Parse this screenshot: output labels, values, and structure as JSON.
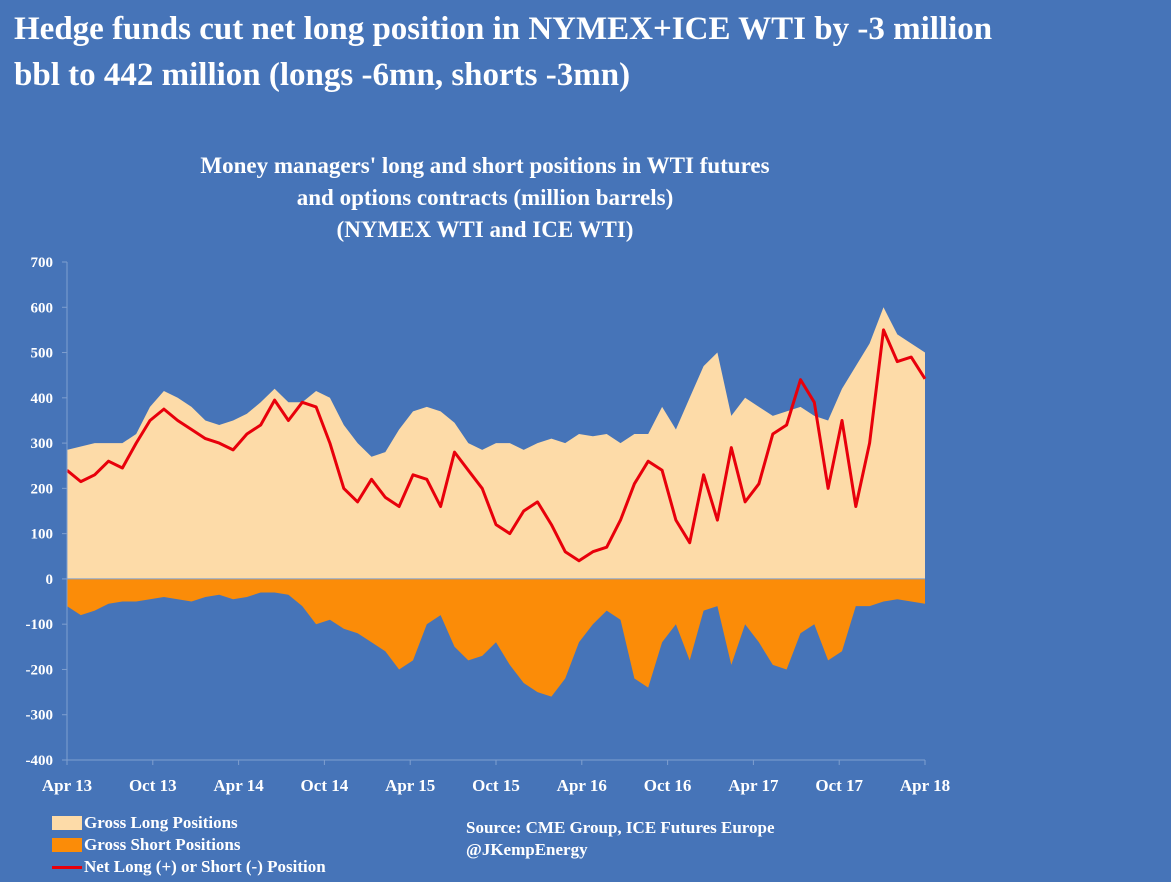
{
  "headline": {
    "line1": "Hedge funds cut net long position in NYMEX+ICE WTI by -3 million",
    "line2": "bbl to 442 million (longs -6mn, shorts -3mn)"
  },
  "colors": {
    "background": "#4674b8",
    "long_fill": "#fddba8",
    "short_fill": "#fb8c08",
    "net_line": "#e8000b",
    "text": "#ffffff"
  },
  "legend": [
    {
      "label": "Gross Long Positions",
      "color": "#fddba8",
      "kind": "fill"
    },
    {
      "label": "Gross Short Positions",
      "color": "#fb8c08",
      "kind": "fill"
    },
    {
      "label": "Net Long (+) or Short (-) Position",
      "color": "#e8000b",
      "kind": "line"
    }
  ],
  "source": {
    "line1": "Source:  CME Group, ICE Futures Europe",
    "line2": "@JKempEnergy"
  },
  "chart_data": {
    "type": "area",
    "title_lines": [
      "Money managers' long and short positions in WTI futures",
      "and options contracts (million barrels)",
      "(NYMEX WTI and ICE WTI)"
    ],
    "xlabel": "",
    "ylabel": "",
    "ylim": [
      -400,
      700
    ],
    "yticks": [
      700,
      600,
      500,
      400,
      300,
      200,
      100,
      0,
      -100,
      -200,
      -300,
      -400
    ],
    "x_tick_labels": [
      "Apr 13",
      "Oct 13",
      "Apr 14",
      "Oct 14",
      "Apr 15",
      "Oct 15",
      "Apr 16",
      "Oct 16",
      "Apr 17",
      "Oct 17",
      "Apr 18"
    ],
    "grid": false,
    "legend_position": "bottom-left",
    "series": [
      {
        "name": "Gross Long Positions",
        "style": "area",
        "points": [
          [
            0,
            285
          ],
          [
            2,
            300
          ],
          [
            4,
            300
          ],
          [
            5,
            320
          ],
          [
            6,
            380
          ],
          [
            7,
            415
          ],
          [
            8,
            400
          ],
          [
            9,
            380
          ],
          [
            10,
            350
          ],
          [
            11,
            340
          ],
          [
            12,
            350
          ],
          [
            13,
            365
          ],
          [
            14,
            390
          ],
          [
            15,
            420
          ],
          [
            16,
            390
          ],
          [
            17,
            390
          ],
          [
            18,
            415
          ],
          [
            19,
            400
          ],
          [
            20,
            340
          ],
          [
            21,
            300
          ],
          [
            22,
            270
          ],
          [
            23,
            280
          ],
          [
            24,
            330
          ],
          [
            25,
            370
          ],
          [
            26,
            380
          ],
          [
            27,
            370
          ],
          [
            28,
            345
          ],
          [
            29,
            300
          ],
          [
            30,
            285
          ],
          [
            31,
            300
          ],
          [
            32,
            300
          ],
          [
            33,
            285
          ],
          [
            34,
            300
          ],
          [
            35,
            310
          ],
          [
            36,
            300
          ],
          [
            37,
            320
          ],
          [
            38,
            315
          ],
          [
            39,
            320
          ],
          [
            40,
            300
          ],
          [
            41,
            320
          ],
          [
            42,
            320
          ],
          [
            43,
            380
          ],
          [
            44,
            330
          ],
          [
            45,
            400
          ],
          [
            46,
            470
          ],
          [
            47,
            500
          ],
          [
            48,
            360
          ],
          [
            49,
            400
          ],
          [
            50,
            380
          ],
          [
            51,
            360
          ],
          [
            52,
            370
          ],
          [
            53,
            380
          ],
          [
            54,
            360
          ],
          [
            55,
            350
          ],
          [
            56,
            420
          ],
          [
            57,
            470
          ],
          [
            58,
            520
          ],
          [
            59,
            600
          ],
          [
            60,
            540
          ],
          [
            61,
            520
          ],
          [
            62,
            500
          ]
        ]
      },
      {
        "name": "Gross Short Positions",
        "style": "area",
        "points": [
          [
            0,
            -60
          ],
          [
            1,
            -80
          ],
          [
            2,
            -70
          ],
          [
            3,
            -55
          ],
          [
            4,
            -50
          ],
          [
            5,
            -50
          ],
          [
            6,
            -45
          ],
          [
            7,
            -40
          ],
          [
            8,
            -45
          ],
          [
            9,
            -50
          ],
          [
            10,
            -40
          ],
          [
            11,
            -35
          ],
          [
            12,
            -45
          ],
          [
            13,
            -40
          ],
          [
            14,
            -30
          ],
          [
            15,
            -30
          ],
          [
            16,
            -35
          ],
          [
            17,
            -60
          ],
          [
            18,
            -100
          ],
          [
            19,
            -90
          ],
          [
            20,
            -110
          ],
          [
            21,
            -120
          ],
          [
            22,
            -140
          ],
          [
            23,
            -160
          ],
          [
            24,
            -200
          ],
          [
            25,
            -180
          ],
          [
            26,
            -100
          ],
          [
            27,
            -80
          ],
          [
            28,
            -150
          ],
          [
            29,
            -180
          ],
          [
            30,
            -170
          ],
          [
            31,
            -140
          ],
          [
            32,
            -190
          ],
          [
            33,
            -230
          ],
          [
            34,
            -250
          ],
          [
            35,
            -260
          ],
          [
            36,
            -220
          ],
          [
            37,
            -140
          ],
          [
            38,
            -100
          ],
          [
            39,
            -70
          ],
          [
            40,
            -90
          ],
          [
            41,
            -220
          ],
          [
            42,
            -240
          ],
          [
            43,
            -140
          ],
          [
            44,
            -100
          ],
          [
            45,
            -180
          ],
          [
            46,
            -70
          ],
          [
            47,
            -60
          ],
          [
            48,
            -190
          ],
          [
            49,
            -100
          ],
          [
            50,
            -140
          ],
          [
            51,
            -190
          ],
          [
            52,
            -200
          ],
          [
            53,
            -120
          ],
          [
            54,
            -100
          ],
          [
            55,
            -180
          ],
          [
            56,
            -160
          ],
          [
            57,
            -60
          ],
          [
            58,
            -60
          ],
          [
            59,
            -50
          ],
          [
            60,
            -45
          ],
          [
            61,
            -50
          ],
          [
            62,
            -55
          ]
        ]
      },
      {
        "name": "Net Long (+) or Short (-) Position",
        "style": "line",
        "points": [
          [
            0,
            240
          ],
          [
            1,
            215
          ],
          [
            2,
            230
          ],
          [
            3,
            260
          ],
          [
            4,
            245
          ],
          [
            5,
            300
          ],
          [
            6,
            350
          ],
          [
            7,
            375
          ],
          [
            8,
            350
          ],
          [
            9,
            330
          ],
          [
            10,
            310
          ],
          [
            11,
            300
          ],
          [
            12,
            285
          ],
          [
            13,
            320
          ],
          [
            14,
            340
          ],
          [
            15,
            395
          ],
          [
            16,
            350
          ],
          [
            17,
            390
          ],
          [
            18,
            380
          ],
          [
            19,
            300
          ],
          [
            20,
            200
          ],
          [
            21,
            170
          ],
          [
            22,
            220
          ],
          [
            23,
            180
          ],
          [
            24,
            160
          ],
          [
            25,
            230
          ],
          [
            26,
            220
          ],
          [
            27,
            160
          ],
          [
            28,
            280
          ],
          [
            29,
            240
          ],
          [
            30,
            200
          ],
          [
            31,
            120
          ],
          [
            32,
            100
          ],
          [
            33,
            150
          ],
          [
            34,
            170
          ],
          [
            35,
            120
          ],
          [
            36,
            60
          ],
          [
            37,
            40
          ],
          [
            38,
            60
          ],
          [
            39,
            70
          ],
          [
            40,
            130
          ],
          [
            41,
            210
          ],
          [
            42,
            260
          ],
          [
            43,
            240
          ],
          [
            44,
            130
          ],
          [
            45,
            80
          ],
          [
            46,
            230
          ],
          [
            47,
            130
          ],
          [
            48,
            290
          ],
          [
            49,
            170
          ],
          [
            50,
            210
          ],
          [
            51,
            320
          ],
          [
            52,
            340
          ],
          [
            53,
            440
          ],
          [
            54,
            390
          ],
          [
            55,
            200
          ],
          [
            56,
            350
          ],
          [
            57,
            160
          ],
          [
            58,
            300
          ],
          [
            59,
            550
          ],
          [
            60,
            480
          ],
          [
            61,
            490
          ],
          [
            62,
            442
          ]
        ]
      }
    ]
  }
}
